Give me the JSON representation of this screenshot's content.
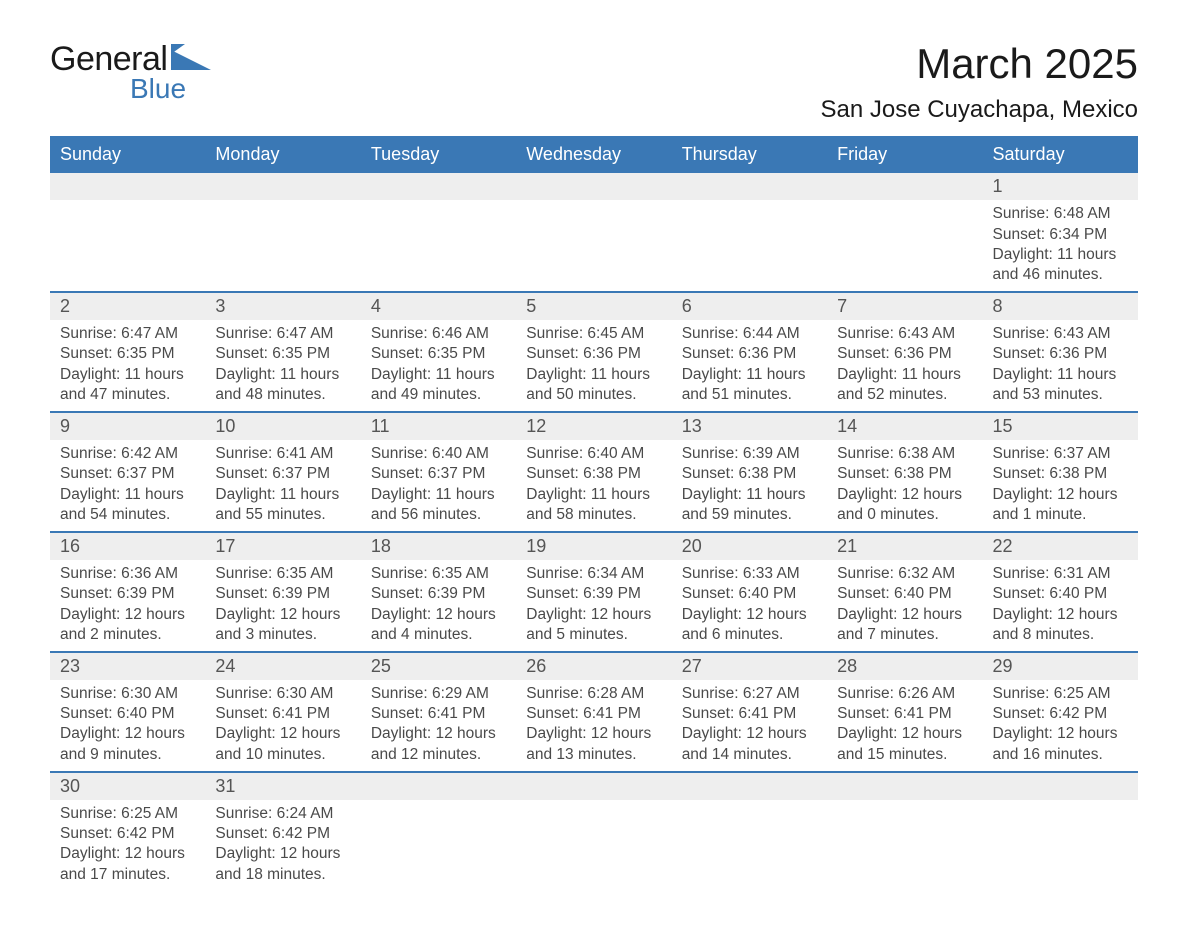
{
  "logo": {
    "text1": "General",
    "text2": "Blue",
    "shape_color": "#3a78b5"
  },
  "title": "March 2025",
  "location": "San Jose Cuyachapa, Mexico",
  "colors": {
    "header_bg": "#3a78b5",
    "header_text": "#ffffff",
    "daynum_bg": "#eeeeee",
    "border": "#3a78b5",
    "text": "#4a4a4a"
  },
  "day_headers": [
    "Sunday",
    "Monday",
    "Tuesday",
    "Wednesday",
    "Thursday",
    "Friday",
    "Saturday"
  ],
  "weeks": [
    [
      null,
      null,
      null,
      null,
      null,
      null,
      {
        "n": "1",
        "sr": "Sunrise: 6:48 AM",
        "ss": "Sunset: 6:34 PM",
        "dl": "Daylight: 11 hours and 46 minutes."
      }
    ],
    [
      {
        "n": "2",
        "sr": "Sunrise: 6:47 AM",
        "ss": "Sunset: 6:35 PM",
        "dl": "Daylight: 11 hours and 47 minutes."
      },
      {
        "n": "3",
        "sr": "Sunrise: 6:47 AM",
        "ss": "Sunset: 6:35 PM",
        "dl": "Daylight: 11 hours and 48 minutes."
      },
      {
        "n": "4",
        "sr": "Sunrise: 6:46 AM",
        "ss": "Sunset: 6:35 PM",
        "dl": "Daylight: 11 hours and 49 minutes."
      },
      {
        "n": "5",
        "sr": "Sunrise: 6:45 AM",
        "ss": "Sunset: 6:36 PM",
        "dl": "Daylight: 11 hours and 50 minutes."
      },
      {
        "n": "6",
        "sr": "Sunrise: 6:44 AM",
        "ss": "Sunset: 6:36 PM",
        "dl": "Daylight: 11 hours and 51 minutes."
      },
      {
        "n": "7",
        "sr": "Sunrise: 6:43 AM",
        "ss": "Sunset: 6:36 PM",
        "dl": "Daylight: 11 hours and 52 minutes."
      },
      {
        "n": "8",
        "sr": "Sunrise: 6:43 AM",
        "ss": "Sunset: 6:36 PM",
        "dl": "Daylight: 11 hours and 53 minutes."
      }
    ],
    [
      {
        "n": "9",
        "sr": "Sunrise: 6:42 AM",
        "ss": "Sunset: 6:37 PM",
        "dl": "Daylight: 11 hours and 54 minutes."
      },
      {
        "n": "10",
        "sr": "Sunrise: 6:41 AM",
        "ss": "Sunset: 6:37 PM",
        "dl": "Daylight: 11 hours and 55 minutes."
      },
      {
        "n": "11",
        "sr": "Sunrise: 6:40 AM",
        "ss": "Sunset: 6:37 PM",
        "dl": "Daylight: 11 hours and 56 minutes."
      },
      {
        "n": "12",
        "sr": "Sunrise: 6:40 AM",
        "ss": "Sunset: 6:38 PM",
        "dl": "Daylight: 11 hours and 58 minutes."
      },
      {
        "n": "13",
        "sr": "Sunrise: 6:39 AM",
        "ss": "Sunset: 6:38 PM",
        "dl": "Daylight: 11 hours and 59 minutes."
      },
      {
        "n": "14",
        "sr": "Sunrise: 6:38 AM",
        "ss": "Sunset: 6:38 PM",
        "dl": "Daylight: 12 hours and 0 minutes."
      },
      {
        "n": "15",
        "sr": "Sunrise: 6:37 AM",
        "ss": "Sunset: 6:38 PM",
        "dl": "Daylight: 12 hours and 1 minute."
      }
    ],
    [
      {
        "n": "16",
        "sr": "Sunrise: 6:36 AM",
        "ss": "Sunset: 6:39 PM",
        "dl": "Daylight: 12 hours and 2 minutes."
      },
      {
        "n": "17",
        "sr": "Sunrise: 6:35 AM",
        "ss": "Sunset: 6:39 PM",
        "dl": "Daylight: 12 hours and 3 minutes."
      },
      {
        "n": "18",
        "sr": "Sunrise: 6:35 AM",
        "ss": "Sunset: 6:39 PM",
        "dl": "Daylight: 12 hours and 4 minutes."
      },
      {
        "n": "19",
        "sr": "Sunrise: 6:34 AM",
        "ss": "Sunset: 6:39 PM",
        "dl": "Daylight: 12 hours and 5 minutes."
      },
      {
        "n": "20",
        "sr": "Sunrise: 6:33 AM",
        "ss": "Sunset: 6:40 PM",
        "dl": "Daylight: 12 hours and 6 minutes."
      },
      {
        "n": "21",
        "sr": "Sunrise: 6:32 AM",
        "ss": "Sunset: 6:40 PM",
        "dl": "Daylight: 12 hours and 7 minutes."
      },
      {
        "n": "22",
        "sr": "Sunrise: 6:31 AM",
        "ss": "Sunset: 6:40 PM",
        "dl": "Daylight: 12 hours and 8 minutes."
      }
    ],
    [
      {
        "n": "23",
        "sr": "Sunrise: 6:30 AM",
        "ss": "Sunset: 6:40 PM",
        "dl": "Daylight: 12 hours and 9 minutes."
      },
      {
        "n": "24",
        "sr": "Sunrise: 6:30 AM",
        "ss": "Sunset: 6:41 PM",
        "dl": "Daylight: 12 hours and 10 minutes."
      },
      {
        "n": "25",
        "sr": "Sunrise: 6:29 AM",
        "ss": "Sunset: 6:41 PM",
        "dl": "Daylight: 12 hours and 12 minutes."
      },
      {
        "n": "26",
        "sr": "Sunrise: 6:28 AM",
        "ss": "Sunset: 6:41 PM",
        "dl": "Daylight: 12 hours and 13 minutes."
      },
      {
        "n": "27",
        "sr": "Sunrise: 6:27 AM",
        "ss": "Sunset: 6:41 PM",
        "dl": "Daylight: 12 hours and 14 minutes."
      },
      {
        "n": "28",
        "sr": "Sunrise: 6:26 AM",
        "ss": "Sunset: 6:41 PM",
        "dl": "Daylight: 12 hours and 15 minutes."
      },
      {
        "n": "29",
        "sr": "Sunrise: 6:25 AM",
        "ss": "Sunset: 6:42 PM",
        "dl": "Daylight: 12 hours and 16 minutes."
      }
    ],
    [
      {
        "n": "30",
        "sr": "Sunrise: 6:25 AM",
        "ss": "Sunset: 6:42 PM",
        "dl": "Daylight: 12 hours and 17 minutes."
      },
      {
        "n": "31",
        "sr": "Sunrise: 6:24 AM",
        "ss": "Sunset: 6:42 PM",
        "dl": "Daylight: 12 hours and 18 minutes."
      },
      null,
      null,
      null,
      null,
      null
    ]
  ]
}
